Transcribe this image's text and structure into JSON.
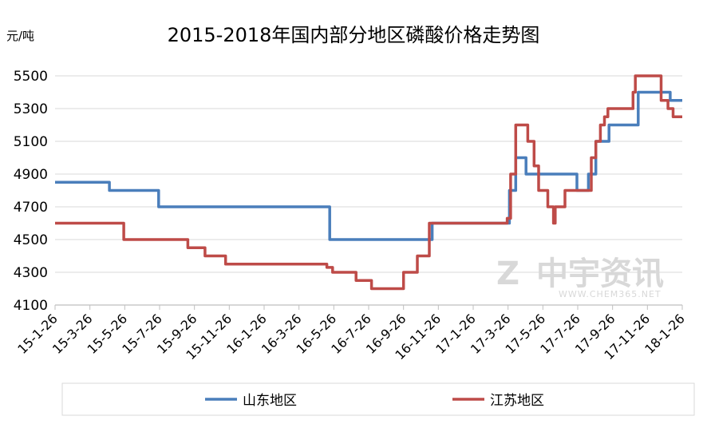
{
  "chart_data": {
    "type": "line",
    "title": "2015-2018年国内部分地区磷酸价格走势图",
    "ylabel": "元/吨",
    "xlabel": "",
    "ylim": [
      4100,
      5600
    ],
    "yticks": [
      4100,
      4300,
      4500,
      4700,
      4900,
      5100,
      5300,
      5500
    ],
    "xlim": [
      "2015-01-26",
      "2018-01-26"
    ],
    "xticks": [
      "15-1-26",
      "15-3-26",
      "15-5-26",
      "15-7-26",
      "15-9-26",
      "15-11-26",
      "16-1-26",
      "16-3-26",
      "16-5-26",
      "16-7-26",
      "16-9-26",
      "16-11-26",
      "17-1-26",
      "17-3-26",
      "17-5-26",
      "17-7-26",
      "17-9-26",
      "17-11-26",
      "18-1-26"
    ],
    "grid": "horizontal",
    "legend": "bottom",
    "series": [
      {
        "name": "山东地区",
        "color": "#4a7ebb",
        "points": [
          [
            "2015-01-26",
            4850
          ],
          [
            "2015-05-01",
            4850
          ],
          [
            "2015-05-01",
            4800
          ],
          [
            "2015-07-26",
            4800
          ],
          [
            "2015-07-26",
            4700
          ],
          [
            "2016-05-20",
            4700
          ],
          [
            "2016-05-20",
            4500
          ],
          [
            "2016-11-15",
            4500
          ],
          [
            "2016-11-15",
            4600
          ],
          [
            "2017-03-30",
            4600
          ],
          [
            "2017-03-30",
            4800
          ],
          [
            "2017-04-10",
            4800
          ],
          [
            "2017-04-10",
            5000
          ],
          [
            "2017-04-28",
            5000
          ],
          [
            "2017-04-28",
            4900
          ],
          [
            "2017-07-26",
            4900
          ],
          [
            "2017-07-26",
            4800
          ],
          [
            "2017-08-15",
            4800
          ],
          [
            "2017-08-15",
            4900
          ],
          [
            "2017-08-28",
            4900
          ],
          [
            "2017-08-28",
            5100
          ],
          [
            "2017-09-20",
            5100
          ],
          [
            "2017-09-20",
            5200
          ],
          [
            "2017-11-10",
            5200
          ],
          [
            "2017-11-10",
            5400
          ],
          [
            "2018-01-05",
            5400
          ],
          [
            "2018-01-05",
            5350
          ],
          [
            "2018-01-26",
            5350
          ]
        ]
      },
      {
        "name": "江苏地区",
        "color": "#be4b48",
        "points": [
          [
            "2015-01-26",
            4600
          ],
          [
            "2015-05-26",
            4600
          ],
          [
            "2015-05-26",
            4500
          ],
          [
            "2015-09-15",
            4500
          ],
          [
            "2015-09-15",
            4450
          ],
          [
            "2015-10-15",
            4450
          ],
          [
            "2015-10-15",
            4400
          ],
          [
            "2015-11-20",
            4400
          ],
          [
            "2015-11-20",
            4350
          ],
          [
            "2016-05-15",
            4350
          ],
          [
            "2016-05-15",
            4330
          ],
          [
            "2016-05-25",
            4330
          ],
          [
            "2016-05-25",
            4300
          ],
          [
            "2016-07-05",
            4300
          ],
          [
            "2016-07-05",
            4250
          ],
          [
            "2016-08-01",
            4250
          ],
          [
            "2016-08-01",
            4200
          ],
          [
            "2016-09-26",
            4200
          ],
          [
            "2016-09-26",
            4300
          ],
          [
            "2016-10-20",
            4300
          ],
          [
            "2016-10-20",
            4400
          ],
          [
            "2016-11-10",
            4400
          ],
          [
            "2016-11-10",
            4600
          ],
          [
            "2017-03-26",
            4600
          ],
          [
            "2017-03-26",
            4630
          ],
          [
            "2017-04-01",
            4630
          ],
          [
            "2017-04-01",
            4900
          ],
          [
            "2017-04-10",
            4900
          ],
          [
            "2017-04-10",
            5200
          ],
          [
            "2017-05-01",
            5200
          ],
          [
            "2017-05-01",
            5100
          ],
          [
            "2017-05-12",
            5100
          ],
          [
            "2017-05-12",
            4950
          ],
          [
            "2017-05-20",
            4950
          ],
          [
            "2017-05-20",
            4800
          ],
          [
            "2017-06-05",
            4800
          ],
          [
            "2017-06-05",
            4700
          ],
          [
            "2017-06-15",
            4700
          ],
          [
            "2017-06-15",
            4600
          ],
          [
            "2017-06-18",
            4600
          ],
          [
            "2017-06-18",
            4700
          ],
          [
            "2017-07-05",
            4700
          ],
          [
            "2017-07-05",
            4800
          ],
          [
            "2017-08-20",
            4800
          ],
          [
            "2017-08-20",
            5000
          ],
          [
            "2017-08-28",
            5000
          ],
          [
            "2017-08-28",
            5100
          ],
          [
            "2017-09-05",
            5100
          ],
          [
            "2017-09-05",
            5200
          ],
          [
            "2017-09-12",
            5200
          ],
          [
            "2017-09-12",
            5250
          ],
          [
            "2017-09-18",
            5250
          ],
          [
            "2017-09-18",
            5300
          ],
          [
            "2017-11-01",
            5300
          ],
          [
            "2017-11-01",
            5400
          ],
          [
            "2017-11-05",
            5400
          ],
          [
            "2017-11-05",
            5500
          ],
          [
            "2017-12-20",
            5500
          ],
          [
            "2017-12-20",
            5350
          ],
          [
            "2018-01-01",
            5350
          ],
          [
            "2018-01-01",
            5300
          ],
          [
            "2018-01-10",
            5300
          ],
          [
            "2018-01-10",
            5250
          ],
          [
            "2018-01-26",
            5250
          ]
        ]
      }
    ]
  },
  "watermark": {
    "brand": "中宇资讯",
    "site": "WWW.CHEM365.NET"
  }
}
